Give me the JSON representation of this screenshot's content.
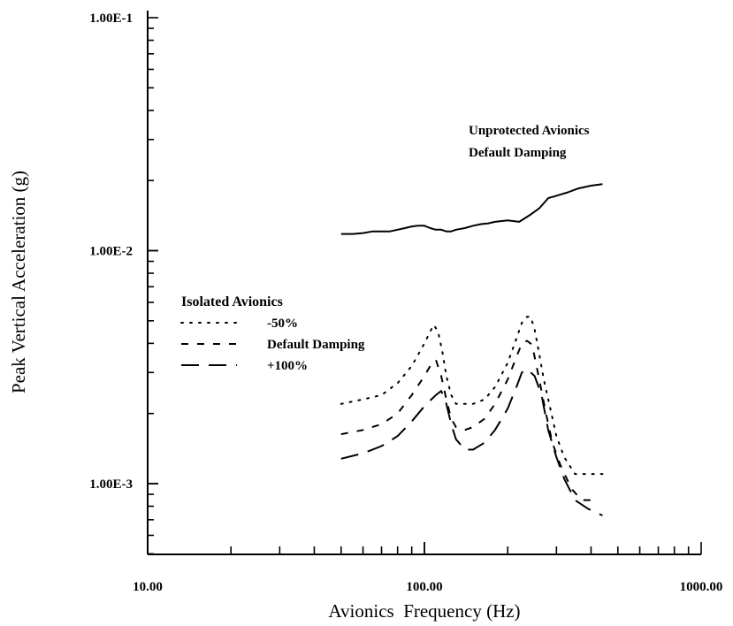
{
  "chart_data": {
    "type": "line",
    "xlabel": "Avionics  Frequency (Hz)",
    "ylabel": "Peak Vertical Acceleration (g)",
    "x_scale": "log",
    "y_scale": "log",
    "xlim": [
      10,
      1000
    ],
    "ylim": [
      0.0005,
      0.1
    ],
    "x_tick_labels": [
      {
        "value": 10,
        "label": "10.00"
      },
      {
        "value": 100,
        "label": "100.00"
      },
      {
        "value": 1000,
        "label": "1000.00"
      }
    ],
    "y_tick_labels": [
      {
        "value": 0.001,
        "label": "1.00E-3"
      },
      {
        "value": 0.01,
        "label": "1.00E-2"
      },
      {
        "value": 0.1,
        "label": "1.00E-1"
      }
    ],
    "grid": false,
    "annotation": {
      "line1": "Unprotected Avionics",
      "line2": "Default Damping"
    },
    "legend": {
      "title": "Isolated Avionics",
      "placement": "center-left"
    },
    "series": [
      {
        "name": "Unprotected Avionics Default Damping",
        "style": "solid",
        "points": [
          [
            50,
            0.0118
          ],
          [
            55,
            0.0118
          ],
          [
            60,
            0.0119
          ],
          [
            65,
            0.0121
          ],
          [
            70,
            0.0121
          ],
          [
            75,
            0.0121
          ],
          [
            80,
            0.0123
          ],
          [
            85,
            0.0125
          ],
          [
            90,
            0.0127
          ],
          [
            95,
            0.0128
          ],
          [
            100,
            0.0128
          ],
          [
            105,
            0.0125
          ],
          [
            110,
            0.0123
          ],
          [
            115,
            0.0123
          ],
          [
            120,
            0.0121
          ],
          [
            125,
            0.0121
          ],
          [
            130,
            0.0123
          ],
          [
            140,
            0.0125
          ],
          [
            150,
            0.0128
          ],
          [
            160,
            0.013
          ],
          [
            170,
            0.0131
          ],
          [
            180,
            0.0133
          ],
          [
            200,
            0.0135
          ],
          [
            220,
            0.0133
          ],
          [
            240,
            0.0142
          ],
          [
            260,
            0.0152
          ],
          [
            280,
            0.0168
          ],
          [
            300,
            0.0172
          ],
          [
            330,
            0.0178
          ],
          [
            360,
            0.0185
          ],
          [
            400,
            0.019
          ],
          [
            440,
            0.0193
          ]
        ]
      },
      {
        "name": "-50%",
        "style": "dotted",
        "points": [
          [
            50,
            0.0022
          ],
          [
            60,
            0.0023
          ],
          [
            70,
            0.0024
          ],
          [
            80,
            0.0027
          ],
          [
            90,
            0.0032
          ],
          [
            100,
            0.004
          ],
          [
            105,
            0.0045
          ],
          [
            108,
            0.0048
          ],
          [
            112,
            0.0045
          ],
          [
            116,
            0.0037
          ],
          [
            120,
            0.0029
          ],
          [
            125,
            0.0024
          ],
          [
            130,
            0.0022
          ],
          [
            140,
            0.0022
          ],
          [
            150,
            0.0022
          ],
          [
            165,
            0.0023
          ],
          [
            180,
            0.0026
          ],
          [
            200,
            0.0033
          ],
          [
            215,
            0.0042
          ],
          [
            225,
            0.0049
          ],
          [
            235,
            0.0052
          ],
          [
            242,
            0.0052
          ],
          [
            250,
            0.0046
          ],
          [
            260,
            0.0036
          ],
          [
            270,
            0.0028
          ],
          [
            285,
            0.0021
          ],
          [
            300,
            0.0016
          ],
          [
            320,
            0.0013
          ],
          [
            350,
            0.0011
          ],
          [
            400,
            0.0011
          ],
          [
            440,
            0.0011
          ]
        ]
      },
      {
        "name": "Default Damping",
        "style": "dashed",
        "points": [
          [
            50,
            0.00163
          ],
          [
            60,
            0.0017
          ],
          [
            70,
            0.0018
          ],
          [
            80,
            0.002
          ],
          [
            90,
            0.0024
          ],
          [
            100,
            0.0029
          ],
          [
            105,
            0.0032
          ],
          [
            110,
            0.0034
          ],
          [
            115,
            0.0029
          ],
          [
            120,
            0.0023
          ],
          [
            125,
            0.0019
          ],
          [
            130,
            0.00175
          ],
          [
            140,
            0.0017
          ],
          [
            150,
            0.00175
          ],
          [
            165,
            0.0019
          ],
          [
            180,
            0.0022
          ],
          [
            200,
            0.0028
          ],
          [
            215,
            0.0035
          ],
          [
            225,
            0.004
          ],
          [
            235,
            0.0041
          ],
          [
            245,
            0.00395
          ],
          [
            260,
            0.0028
          ],
          [
            275,
            0.002
          ],
          [
            290,
            0.0015
          ],
          [
            310,
            0.0012
          ],
          [
            340,
            0.00095
          ],
          [
            370,
            0.00085
          ],
          [
            420,
            0.00085
          ]
        ]
      },
      {
        "name": "+100%",
        "style": "longdash",
        "points": [
          [
            50,
            0.00128
          ],
          [
            60,
            0.00135
          ],
          [
            70,
            0.00145
          ],
          [
            80,
            0.0016
          ],
          [
            90,
            0.00185
          ],
          [
            100,
            0.00215
          ],
          [
            110,
            0.0024
          ],
          [
            115,
            0.0025
          ],
          [
            120,
            0.0022
          ],
          [
            125,
            0.0018
          ],
          [
            130,
            0.00155
          ],
          [
            140,
            0.0014
          ],
          [
            150,
            0.0014
          ],
          [
            165,
            0.0015
          ],
          [
            180,
            0.0017
          ],
          [
            200,
            0.0021
          ],
          [
            215,
            0.0026
          ],
          [
            225,
            0.003
          ],
          [
            235,
            0.0031
          ],
          [
            250,
            0.0029
          ],
          [
            265,
            0.0024
          ],
          [
            280,
            0.0017
          ],
          [
            300,
            0.0013
          ],
          [
            320,
            0.00105
          ],
          [
            350,
            0.00085
          ],
          [
            390,
            0.00078
          ],
          [
            440,
            0.00073
          ]
        ]
      }
    ]
  }
}
